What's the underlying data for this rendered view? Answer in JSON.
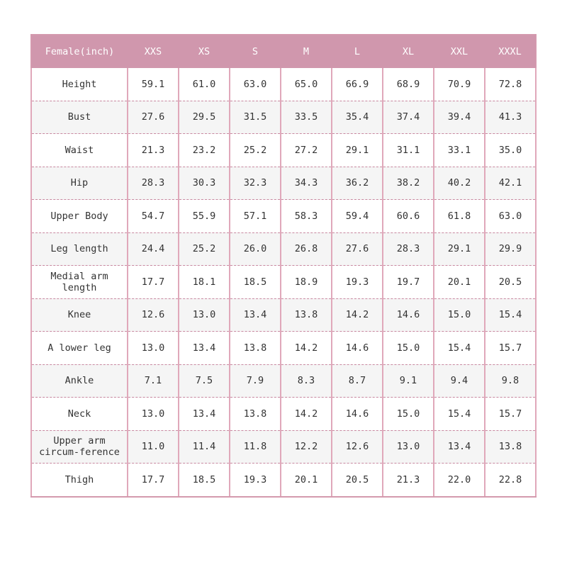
{
  "table": {
    "header": [
      "Female(inch)",
      "XXS",
      "XS",
      "S",
      "M",
      "L",
      "XL",
      "XXL",
      "XXXL"
    ],
    "rows": [
      {
        "label": "Height",
        "values": [
          "59.1",
          "61.0",
          "63.0",
          "65.0",
          "66.9",
          "68.9",
          "70.9",
          "72.8"
        ]
      },
      {
        "label": "Bust",
        "values": [
          "27.6",
          "29.5",
          "31.5",
          "33.5",
          "35.4",
          "37.4",
          "39.4",
          "41.3"
        ]
      },
      {
        "label": "Waist",
        "values": [
          "21.3",
          "23.2",
          "25.2",
          "27.2",
          "29.1",
          "31.1",
          "33.1",
          "35.0"
        ]
      },
      {
        "label": "Hip",
        "values": [
          "28.3",
          "30.3",
          "32.3",
          "34.3",
          "36.2",
          "38.2",
          "40.2",
          "42.1"
        ]
      },
      {
        "label": "Upper Body",
        "values": [
          "54.7",
          "55.9",
          "57.1",
          "58.3",
          "59.4",
          "60.6",
          "61.8",
          "63.0"
        ]
      },
      {
        "label": "Leg length",
        "values": [
          "24.4",
          "25.2",
          "26.0",
          "26.8",
          "27.6",
          "28.3",
          "29.1",
          "29.9"
        ]
      },
      {
        "label": "Medial arm length",
        "values": [
          "17.7",
          "18.1",
          "18.5",
          "18.9",
          "19.3",
          "19.7",
          "20.1",
          "20.5"
        ]
      },
      {
        "label": "Knee",
        "values": [
          "12.6",
          "13.0",
          "13.4",
          "13.8",
          "14.2",
          "14.6",
          "15.0",
          "15.4"
        ]
      },
      {
        "label": "A lower leg",
        "values": [
          "13.0",
          "13.4",
          "13.8",
          "14.2",
          "14.6",
          "15.0",
          "15.4",
          "15.7"
        ]
      },
      {
        "label": "Ankle",
        "values": [
          "7.1",
          "7.5",
          "7.9",
          "8.3",
          "8.7",
          "9.1",
          "9.4",
          "9.8"
        ]
      },
      {
        "label": "Neck",
        "values": [
          "13.0",
          "13.4",
          "13.8",
          "14.2",
          "14.6",
          "15.0",
          "15.4",
          "15.7"
        ]
      },
      {
        "label": "Upper arm circum-ference",
        "values": [
          "11.0",
          "11.4",
          "11.8",
          "12.2",
          "12.6",
          "13.0",
          "13.4",
          "13.8"
        ]
      },
      {
        "label": "Thigh",
        "values": [
          "17.7",
          "18.5",
          "19.3",
          "20.1",
          "20.5",
          "21.3",
          "22.0",
          "22.8"
        ]
      }
    ]
  },
  "colors": {
    "header_bg": "#d097ad",
    "header_text": "#ffffff",
    "border": "#d49aae",
    "dashed_divider": "#c888a0",
    "alt_row_bg": "#f5f5f5",
    "text": "#333333"
  }
}
